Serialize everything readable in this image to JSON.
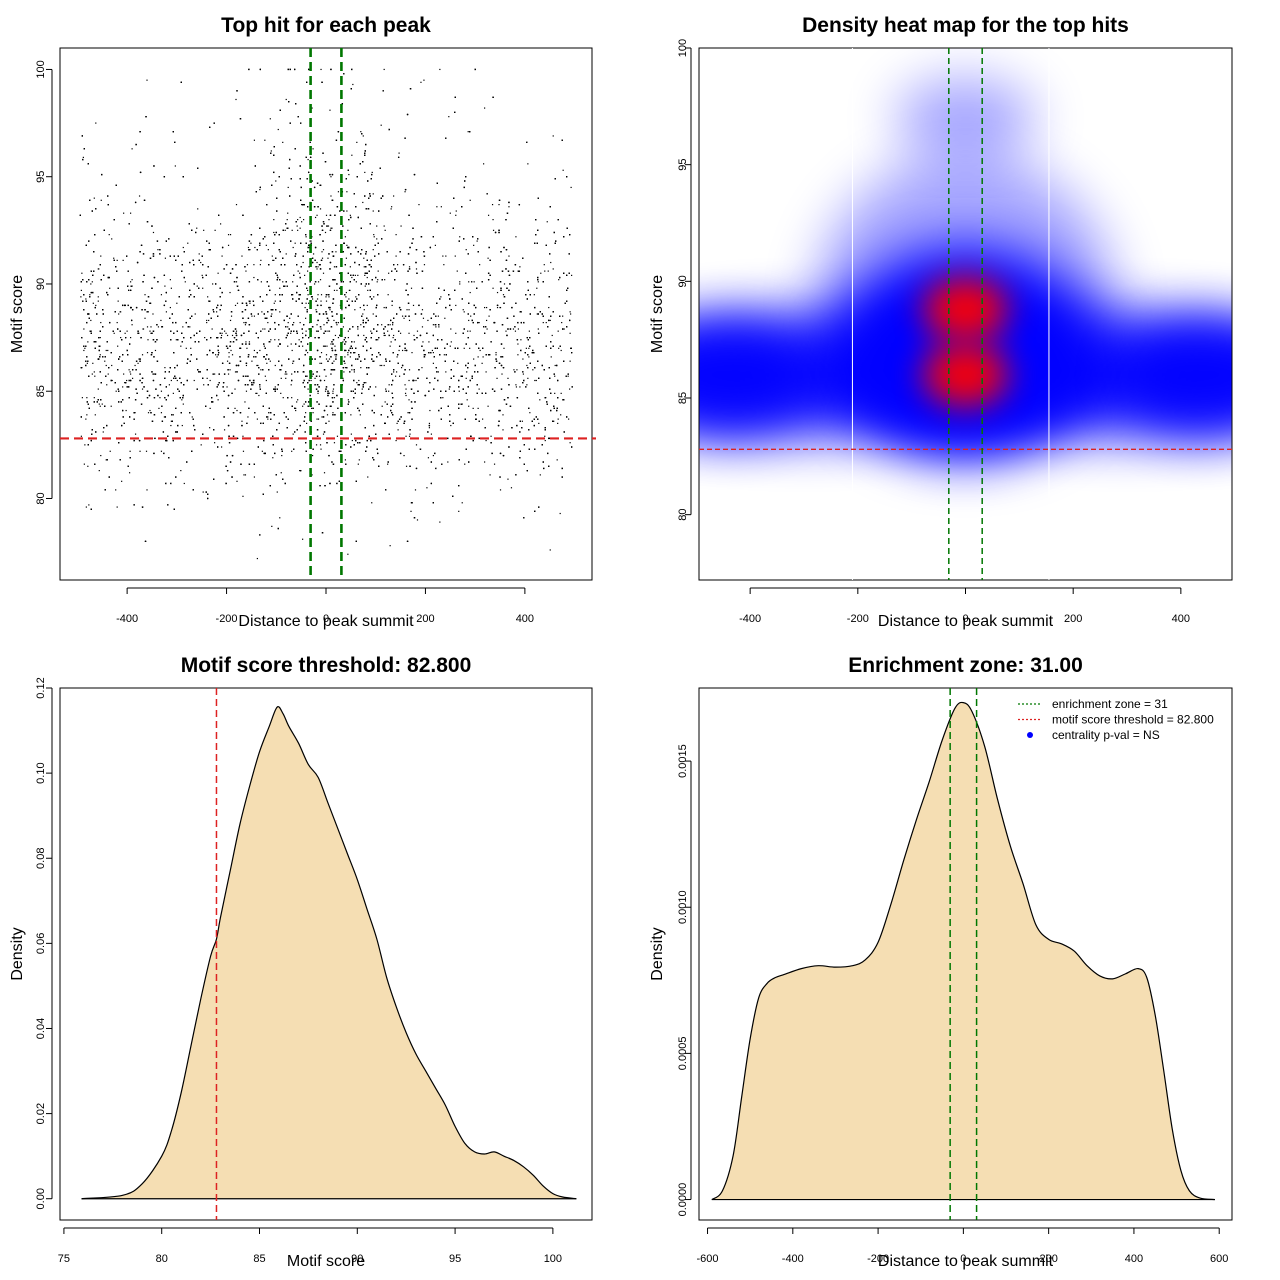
{
  "chart_data": [
    {
      "type": "scatter",
      "title": "Top hit for each peak",
      "xlabel": "Distance to peak summit",
      "ylabel": "Motif score",
      "xlim": [
        -535,
        535
      ],
      "ylim": [
        76.2,
        101.0
      ],
      "xticks": [
        -400,
        -200,
        0,
        200,
        400
      ],
      "yticks": [
        80,
        85,
        90,
        95,
        100
      ],
      "xtick_labels": [
        "-400",
        "-200",
        "0",
        "200",
        "400"
      ],
      "ytick_labels": [
        "80",
        "85",
        "90",
        "95",
        "100"
      ],
      "x_range": [
        -495,
        495
      ],
      "y_range": [
        77.2,
        100.0
      ],
      "y_mode": 86.5,
      "approx_points": 9000,
      "point_color": "#000000",
      "threshold_line": {
        "y": 82.8,
        "color": "#dd2222"
      },
      "zone_lines": {
        "x": [
          -31,
          31
        ],
        "color": "#007700"
      }
    },
    {
      "type": "heatmap",
      "title": "Density heat map for the top hits",
      "xlabel": "Distance to peak summit",
      "ylabel": "Motif score",
      "xlim": [
        -495,
        495
      ],
      "ylim": [
        77.2,
        100.0
      ],
      "xticks": [
        -400,
        -200,
        0,
        200,
        400
      ],
      "yticks": [
        80,
        85,
        90,
        95,
        100
      ],
      "xtick_labels": [
        "-400",
        "-200",
        "0",
        "200",
        "400"
      ],
      "ytick_labels": [
        "80",
        "85",
        "90",
        "95",
        "100"
      ],
      "colors": [
        "#ffffff",
        "#0000ff",
        "#ff0000"
      ],
      "hotspots": [
        {
          "x": 0,
          "y": 86.0,
          "level": "high"
        },
        {
          "x": 0,
          "y": 88.8,
          "level": "high"
        }
      ],
      "threshold_line": {
        "y": 82.8,
        "color": "#dd2222"
      },
      "zone_lines": {
        "x": [
          -31,
          31
        ],
        "color": "#007700"
      },
      "white_lines": {
        "x": [
          -210,
          155
        ]
      }
    },
    {
      "type": "area",
      "title": "Motif score threshold: 82.800",
      "xlabel": "Motif score",
      "ylabel": "Density",
      "xlim": [
        74.8,
        102.0
      ],
      "ylim": [
        -0.005,
        0.12
      ],
      "xticks": [
        75,
        80,
        85,
        90,
        95,
        100
      ],
      "yticks": [
        0.0,
        0.02,
        0.04,
        0.06,
        0.08,
        0.1,
        0.12
      ],
      "xtick_labels": [
        "75",
        "80",
        "85",
        "90",
        "95",
        "100"
      ],
      "ytick_labels": [
        "0.00",
        "0.02",
        "0.04",
        "0.06",
        "0.08",
        "0.10",
        "0.12"
      ],
      "fill": "#f5deb3",
      "x": [
        75.9,
        78.0,
        79.0,
        80.0,
        80.5,
        81.0,
        81.5,
        82.0,
        82.5,
        82.8,
        83.0,
        83.5,
        84.0,
        84.5,
        85.0,
        85.5,
        85.9,
        86.2,
        86.5,
        87.0,
        87.5,
        88.0,
        88.5,
        89.0,
        89.5,
        90.0,
        90.5,
        91.0,
        91.5,
        92.0,
        92.5,
        93.0,
        93.5,
        94.0,
        94.5,
        95.0,
        95.5,
        96.0,
        96.5,
        97.0,
        97.5,
        98.0,
        98.5,
        99.0,
        99.5,
        100.0,
        100.5,
        101.2
      ],
      "y": [
        0.0,
        0.0008,
        0.0035,
        0.01,
        0.016,
        0.025,
        0.036,
        0.047,
        0.057,
        0.061,
        0.066,
        0.077,
        0.088,
        0.097,
        0.105,
        0.111,
        0.1155,
        0.114,
        0.111,
        0.107,
        0.102,
        0.099,
        0.093,
        0.087,
        0.081,
        0.075,
        0.068,
        0.061,
        0.052,
        0.045,
        0.039,
        0.034,
        0.03,
        0.026,
        0.022,
        0.017,
        0.013,
        0.011,
        0.0105,
        0.011,
        0.01,
        0.009,
        0.0075,
        0.0055,
        0.003,
        0.0012,
        0.0004,
        0.0
      ],
      "threshold_line": {
        "x": 82.8,
        "color": "#dd2222"
      }
    },
    {
      "type": "area",
      "title": "Enrichment zone: 31.00",
      "xlabel": "Distance to peak summit",
      "ylabel": "Density",
      "xlim": [
        -620,
        630
      ],
      "ylim": [
        -7e-05,
        0.00175
      ],
      "xticks": [
        -600,
        -400,
        -200,
        0,
        200,
        400,
        600
      ],
      "yticks": [
        0.0,
        0.0005,
        0.001,
        0.0015
      ],
      "xtick_labels": [
        "-600",
        "-400",
        "-200",
        "0",
        "200",
        "400",
        "600"
      ],
      "ytick_labels": [
        "0.0000",
        "0.0005",
        "0.0010",
        "0.0015"
      ],
      "fill": "#f5deb3",
      "x": [
        -590,
        -565,
        -540,
        -520,
        -500,
        -480,
        -460,
        -440,
        -420,
        -380,
        -340,
        -300,
        -260,
        -230,
        -200,
        -170,
        -140,
        -110,
        -80,
        -50,
        -20,
        0,
        20,
        50,
        80,
        110,
        140,
        170,
        200,
        230,
        260,
        290,
        320,
        350,
        380,
        410,
        430,
        450,
        470,
        490,
        510,
        530,
        555,
        590
      ],
      "y": [
        0.0,
        3e-05,
        0.00015,
        0.00035,
        0.00055,
        0.00069,
        0.00074,
        0.00076,
        0.00077,
        0.00079,
        0.0008,
        0.000795,
        0.0008,
        0.00082,
        0.00088,
        0.00101,
        0.00116,
        0.0013,
        0.00143,
        0.00157,
        0.00168,
        0.0017,
        0.00167,
        0.00155,
        0.00137,
        0.00121,
        0.00108,
        0.00094,
        0.00089,
        0.000875,
        0.00085,
        0.0008,
        0.000765,
        0.000755,
        0.000772,
        0.00079,
        0.00076,
        0.00063,
        0.00044,
        0.00024,
        0.0001,
        3e-05,
        5e-06,
        0.0
      ],
      "zone_lines": {
        "x": [
          -31,
          31
        ],
        "color": "#007700"
      },
      "legend": {
        "position": "top-right",
        "entries": [
          {
            "label": "enrichment zone = 31",
            "color": "#007700",
            "kind": "line"
          },
          {
            "label": "motif score threshold = 82.800",
            "color": "#dd2222",
            "kind": "line"
          },
          {
            "label": "centrality p-val = NS",
            "color": "#0000ff",
            "kind": "point"
          }
        ]
      }
    }
  ]
}
